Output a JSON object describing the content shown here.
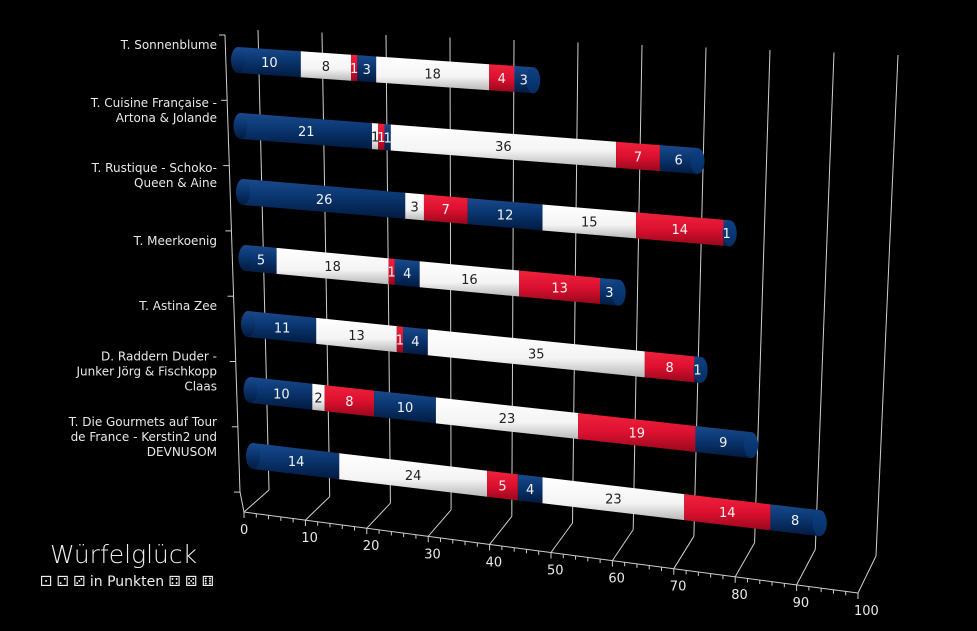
{
  "chart_data": {
    "type": "bar",
    "orientation": "horizontal-stacked-3d",
    "title": "Würfelglück",
    "subtitle": "⚀ ⚁ ⚂ in Punkten ⚃ ⚄ ⚅",
    "categories": [
      [
        "T. Sonnenblume"
      ],
      [
        "T. Cuisine Française -",
        "Artona & Jolande"
      ],
      [
        "T. Rustique - Schoko-",
        "Queen & Aine"
      ],
      [
        "T. Meerkoenig"
      ],
      [
        "T. Astina Zee"
      ],
      [
        "D. Raddern Duder -",
        "Junker Jörg & Fischkopp",
        "Claas"
      ],
      [
        "T. Die Gourmets auf Tour",
        "de France - Kerstin2 und",
        "DEVNUSOM"
      ]
    ],
    "series_colors": [
      "#06306b",
      "#ffffff",
      "#e0122d",
      "#06306b",
      "#ffffff",
      "#e0122d",
      "#06306b"
    ],
    "values": [
      [
        10,
        8,
        1,
        3,
        18,
        4,
        3
      ],
      [
        21,
        1,
        1,
        1,
        36,
        7,
        6
      ],
      [
        26,
        3,
        7,
        12,
        15,
        14,
        1
      ],
      [
        5,
        18,
        1,
        4,
        16,
        13,
        3
      ],
      [
        11,
        13,
        1,
        4,
        35,
        8,
        1
      ],
      [
        10,
        2,
        8,
        10,
        23,
        19,
        9
      ],
      [
        14,
        24,
        5,
        4,
        23,
        14,
        8
      ]
    ],
    "xlim": [
      0,
      100
    ],
    "xticks": [
      0,
      10,
      20,
      30,
      40,
      50,
      60,
      70,
      80,
      90,
      100
    ],
    "grid": true
  }
}
